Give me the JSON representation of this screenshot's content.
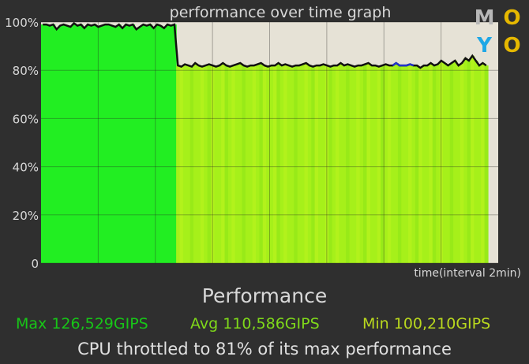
{
  "chart_data": {
    "type": "area",
    "title": "performance over time graph",
    "xlabel": "time(interval 2min)",
    "ylabel": "",
    "ylim": [
      0,
      100
    ],
    "yticks": [
      "0",
      "20%",
      "40%",
      "60%",
      "80%",
      "100%"
    ],
    "grid": true,
    "colors": {
      "high": "#22ee22",
      "mid": "#a6f01a",
      "background": "#e6e2d6",
      "line": "#111111",
      "dip_line": "#2233cc"
    },
    "series": [
      {
        "values": [
          99,
          99,
          98.5,
          99,
          97,
          98.5,
          99,
          98.5,
          98,
          99.5,
          98.5,
          99,
          97.5,
          99,
          98.5,
          99,
          98,
          98.5,
          99,
          99,
          98.5,
          98,
          99,
          97.5,
          99,
          98.5,
          99,
          97,
          98,
          99,
          98.5,
          99,
          97.5,
          99,
          98.5,
          97.5,
          99,
          98.5,
          99,
          82,
          81.5,
          82.5,
          82,
          81.5,
          83,
          82,
          81.5,
          82,
          82.5,
          82,
          81.5,
          82,
          83,
          82,
          81.5,
          82,
          82.5,
          83,
          82,
          81.5,
          82,
          82,
          82.5,
          83,
          82,
          81.5,
          82,
          82,
          83,
          82,
          82.5,
          82,
          81.5,
          82,
          82,
          82.5,
          83,
          82,
          81.5,
          82,
          82,
          82.5,
          82,
          81.5,
          82,
          82,
          83,
          82,
          82.5,
          82,
          81.5,
          82,
          82,
          82.5,
          83,
          82,
          82,
          81.5,
          82,
          82.5,
          82,
          82,
          83,
          82,
          82,
          82,
          82.5,
          82,
          82,
          81,
          82,
          82,
          83,
          82,
          82.5,
          84,
          83,
          82,
          83,
          84,
          82,
          83,
          85,
          84,
          86,
          84,
          82,
          83,
          82
        ]
      }
    ]
  },
  "logo": {
    "letters": [
      "M",
      "O",
      "Y",
      "O"
    ]
  },
  "summary": {
    "heading": "Performance",
    "max": "Max 126,529GIPS",
    "avg": "Avg 110,586GIPS",
    "min": "Min 100,210GIPS",
    "throttle": "CPU throttled to 81% of its max performance"
  }
}
